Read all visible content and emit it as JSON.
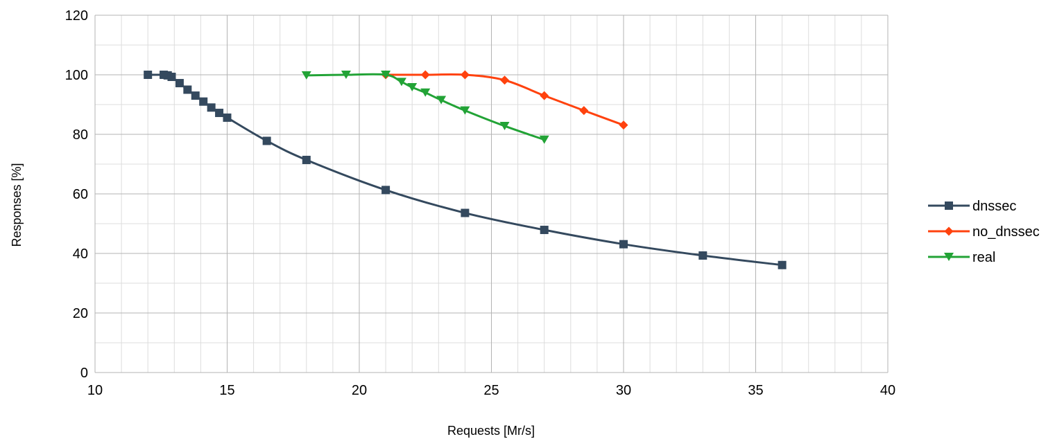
{
  "chart_data": {
    "type": "scatter",
    "xlabel": "Requests [Mr/s]",
    "ylabel": "Responses [%]",
    "xlim": [
      10,
      40
    ],
    "ylim": [
      0,
      120
    ],
    "x_ticks": [
      10,
      15,
      20,
      25,
      30,
      35,
      40
    ],
    "y_ticks": [
      0,
      20,
      40,
      60,
      80,
      100,
      120
    ],
    "x_minor_step": 1,
    "y_minor_step": 10,
    "grid": true,
    "legend_position": "right",
    "lines_smoothed": true,
    "series": [
      {
        "name": "dnssec",
        "color": "#34495e",
        "marker": "square",
        "points": [
          [
            12.0,
            100.0
          ],
          [
            12.6,
            100.0
          ],
          [
            12.75,
            99.8
          ],
          [
            12.9,
            99.3
          ],
          [
            13.2,
            97.2
          ],
          [
            13.5,
            95.0
          ],
          [
            13.8,
            93.0
          ],
          [
            14.1,
            91.0
          ],
          [
            14.4,
            89.0
          ],
          [
            14.7,
            87.2
          ],
          [
            15.0,
            85.6
          ],
          [
            16.5,
            77.8
          ],
          [
            18.0,
            71.4
          ],
          [
            21.0,
            61.3
          ],
          [
            24.0,
            53.6
          ],
          [
            27.0,
            47.9
          ],
          [
            30.0,
            43.1
          ],
          [
            33.0,
            39.3
          ],
          [
            36.0,
            36.1
          ]
        ]
      },
      {
        "name": "no_dnssec",
        "color": "#ff420e",
        "marker": "diamond",
        "points": [
          [
            21.0,
            100.0
          ],
          [
            22.5,
            100.0
          ],
          [
            24.0,
            100.0
          ],
          [
            25.5,
            98.2
          ],
          [
            27.0,
            93.0
          ],
          [
            28.5,
            88.0
          ],
          [
            30.0,
            83.1
          ]
        ]
      },
      {
        "name": "real",
        "color": "#22a336",
        "marker": "triangle-down",
        "points": [
          [
            18.0,
            99.8
          ],
          [
            19.5,
            100.0
          ],
          [
            21.0,
            100.0
          ],
          [
            21.6,
            97.6
          ],
          [
            22.0,
            95.8
          ],
          [
            22.5,
            94.0
          ],
          [
            23.1,
            91.5
          ],
          [
            24.0,
            88.0
          ],
          [
            25.5,
            82.8
          ],
          [
            27.0,
            78.2
          ]
        ]
      }
    ]
  }
}
